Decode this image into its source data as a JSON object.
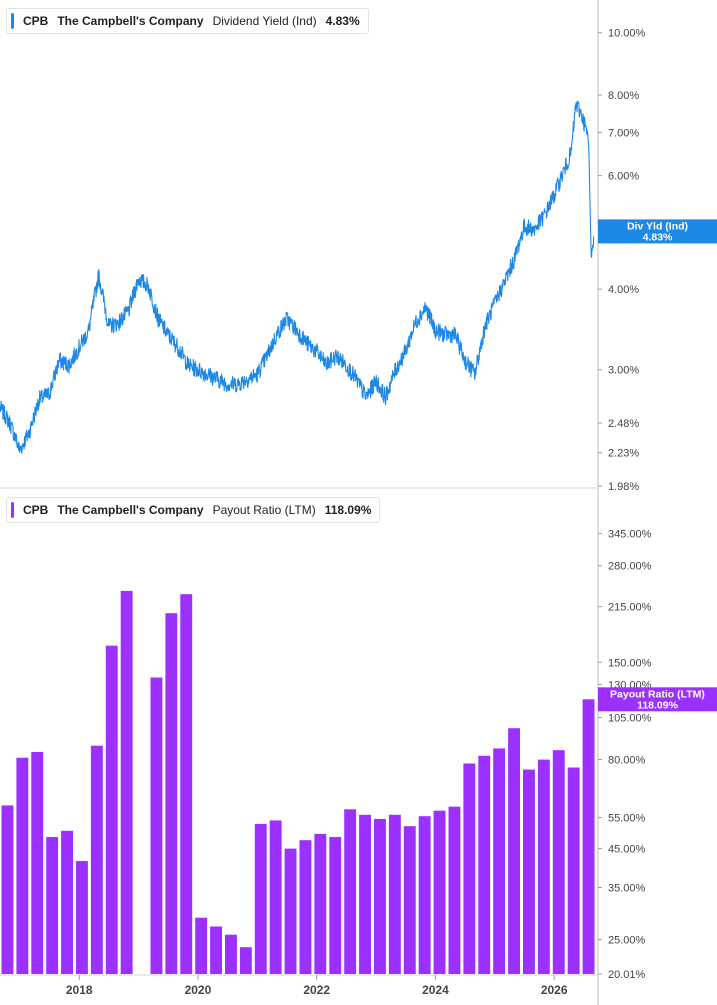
{
  "legend_top": {
    "ticker": "CPB",
    "company": "The Campbell's Company",
    "metric": "Dividend Yield (Ind)",
    "value": "4.83%",
    "color": "#1e88e5"
  },
  "legend_bottom": {
    "ticker": "CPB",
    "company": "The Campbell's Company",
    "metric": "Payout Ratio (LTM)",
    "value": "118.09%",
    "color": "#9b30ff"
  },
  "chart_data": [
    {
      "type": "line",
      "title": "",
      "scale": "log",
      "series": [
        {
          "name": "Div Yld (Ind)",
          "color": "#1e88e5"
        }
      ],
      "flag_label": "Div Yld (Ind)",
      "flag_value": "4.83%",
      "ylim": [
        1.98,
        11.0
      ],
      "y_ticks": [
        1.98,
        2.23,
        2.48,
        3.0,
        4.0,
        5.0,
        6.0,
        7.0,
        8.0,
        10.0
      ],
      "y_tick_labels": [
        "1.98%",
        "2.23%",
        "2.48%",
        "3.00%",
        "4.00%",
        "5.00%",
        "6.00%",
        "7.00%",
        "8.00%",
        "10.00%"
      ],
      "xlim": [
        "2016-09-01",
        "2026-09-15"
      ],
      "x": [
        "2016-09-01",
        "2016-11-01",
        "2017-01-01",
        "2017-03-01",
        "2017-05-01",
        "2017-07-01",
        "2017-09-01",
        "2017-11-01",
        "2018-01-01",
        "2018-03-01",
        "2018-05-01",
        "2018-07-01",
        "2018-09-01",
        "2018-11-01",
        "2019-01-01",
        "2019-03-01",
        "2019-05-01",
        "2019-07-01",
        "2019-09-01",
        "2019-11-01",
        "2020-01-01",
        "2020-03-01",
        "2020-05-01",
        "2020-07-01",
        "2020-09-01",
        "2020-11-01",
        "2021-01-01",
        "2021-03-01",
        "2021-05-01",
        "2021-07-01",
        "2021-09-01",
        "2021-11-01",
        "2022-01-01",
        "2022-03-01",
        "2022-05-01",
        "2022-07-01",
        "2022-09-01",
        "2022-11-01",
        "2023-01-01",
        "2023-03-01",
        "2023-05-01",
        "2023-07-01",
        "2023-09-01",
        "2023-11-01",
        "2024-01-01",
        "2024-03-01",
        "2024-05-01",
        "2024-07-01",
        "2024-09-01",
        "2024-11-01",
        "2025-01-01",
        "2025-03-01",
        "2025-05-01",
        "2025-07-01",
        "2025-09-01",
        "2025-11-01",
        "2026-01-01",
        "2026-03-01",
        "2026-04-15",
        "2026-05-15",
        "2026-06-15",
        "2026-07-15",
        "2026-08-01",
        "2026-08-15",
        "2026-09-01"
      ],
      "y": [
        2.62,
        2.48,
        2.25,
        2.4,
        2.7,
        2.75,
        3.1,
        3.05,
        3.25,
        3.45,
        4.2,
        3.5,
        3.55,
        3.7,
        4.15,
        4.05,
        3.6,
        3.4,
        3.25,
        3.05,
        3.0,
        2.95,
        2.9,
        2.85,
        2.85,
        2.9,
        2.95,
        3.15,
        3.4,
        3.6,
        3.45,
        3.3,
        3.2,
        3.05,
        3.15,
        3.05,
        2.9,
        2.72,
        2.88,
        2.72,
        3.0,
        3.2,
        3.55,
        3.75,
        3.45,
        3.4,
        3.4,
        3.1,
        2.95,
        3.5,
        3.8,
        4.1,
        4.45,
        5.0,
        4.95,
        5.2,
        5.6,
        6.1,
        6.5,
        7.75,
        7.5,
        7.1,
        6.7,
        4.55,
        4.83
      ]
    },
    {
      "type": "bar",
      "title": "",
      "scale": "log",
      "series": [
        {
          "name": "Payout Ratio (LTM)",
          "color": "#9b30ff"
        }
      ],
      "flag_label": "Payout Ratio (LTM)",
      "flag_value": "118.09%",
      "ylim": [
        20.01,
        420
      ],
      "y_ticks": [
        20.01,
        25,
        35,
        45,
        55,
        80,
        105,
        130,
        150,
        215,
        280,
        345
      ],
      "y_tick_labels": [
        "20.01%",
        "25.00%",
        "35.00%",
        "45.00%",
        "55.00%",
        "80.00%",
        "105.00%",
        "130.00%",
        "150.00%",
        "215.00%",
        "280.00%",
        "345.00%"
      ],
      "x_ticks": [
        "2018",
        "2020",
        "2022",
        "2024",
        "2026"
      ],
      "values": [
        59.5,
        81,
        84,
        48.5,
        50.5,
        41.5,
        87.5,
        167,
        238,
        null,
        136,
        206,
        233,
        28.8,
        27.2,
        25.8,
        23.8,
        52.8,
        54,
        45,
        47.5,
        49.5,
        48.5,
        58,
        56,
        54.5,
        56,
        52,
        55.5,
        57.5,
        59,
        78,
        82,
        86,
        98,
        75,
        80,
        85,
        76,
        118.09
      ]
    }
  ]
}
